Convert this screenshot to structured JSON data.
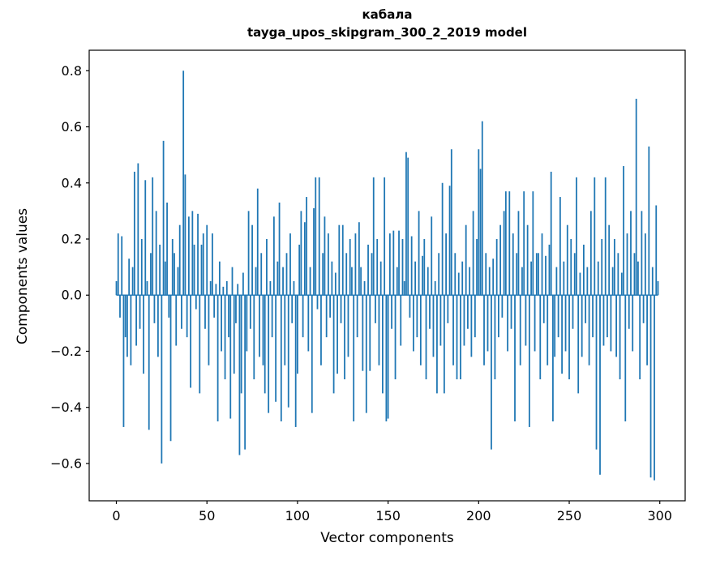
{
  "figure": {
    "title_line1": "кабала",
    "title_line2": "tayga_upos_skipgram_300_2_2019 model",
    "xlabel": "Vector components",
    "ylabel": "Components values"
  },
  "chart_data": {
    "type": "bar",
    "title": "кабала\ntayga_upos_skipgram_300_2_2019 model",
    "xlabel": "Vector components",
    "ylabel": "Components values",
    "bar_color": "#1f77b4",
    "grid": false,
    "legend": null,
    "xlim": [
      -15,
      314
    ],
    "ylim": [
      -0.733,
      0.873
    ],
    "x_ticks": [
      0,
      50,
      100,
      150,
      200,
      250,
      300
    ],
    "y_ticks": [
      -0.6,
      -0.4,
      -0.2,
      0.0,
      0.2,
      0.4,
      0.6,
      0.8
    ],
    "y_tick_labels": [
      "−0.6",
      "−0.4",
      "−0.2",
      "0.0",
      "0.2",
      "0.4",
      "0.6",
      "0.8"
    ],
    "x_description": "component index 0..299",
    "values": [
      0.05,
      0.22,
      -0.08,
      0.21,
      -0.47,
      -0.15,
      -0.22,
      0.13,
      -0.25,
      0.1,
      0.44,
      -0.18,
      0.47,
      -0.12,
      0.2,
      -0.28,
      0.41,
      0.05,
      -0.48,
      0.15,
      0.42,
      -0.1,
      0.3,
      -0.22,
      0.18,
      -0.6,
      0.55,
      0.12,
      0.33,
      -0.08,
      -0.52,
      0.2,
      0.15,
      -0.18,
      0.1,
      0.25,
      -0.12,
      0.8,
      0.43,
      -0.15,
      0.28,
      -0.33,
      0.3,
      0.18,
      -0.05,
      0.29,
      -0.35,
      0.18,
      0.22,
      -0.12,
      0.25,
      -0.25,
      0.05,
      0.22,
      -0.08,
      0.04,
      -0.45,
      0.12,
      -0.2,
      0.03,
      -0.3,
      0.05,
      -0.15,
      -0.44,
      0.1,
      -0.28,
      -0.1,
      0.04,
      -0.57,
      -0.35,
      0.08,
      -0.55,
      -0.2,
      0.3,
      -0.12,
      0.25,
      -0.3,
      0.1,
      0.38,
      -0.22,
      0.15,
      -0.25,
      -0.35,
      0.2,
      -0.42,
      0.05,
      -0.15,
      0.28,
      -0.38,
      0.12,
      0.33,
      -0.45,
      0.1,
      -0.25,
      0.15,
      -0.4,
      0.22,
      -0.1,
      0.05,
      -0.47,
      -0.28,
      0.18,
      0.3,
      -0.15,
      0.26,
      0.35,
      -0.2,
      0.1,
      -0.42,
      0.31,
      0.42,
      -0.05,
      0.42,
      -0.25,
      0.15,
      0.28,
      -0.15,
      0.22,
      -0.08,
      0.12,
      -0.35,
      0.08,
      -0.28,
      0.25,
      -0.1,
      0.25,
      -0.3,
      0.15,
      -0.22,
      0.2,
      0.1,
      -0.45,
      0.22,
      -0.15,
      0.26,
      0.1,
      -0.27,
      0.05,
      -0.42,
      0.18,
      -0.27,
      0.15,
      0.42,
      -0.1,
      0.2,
      -0.25,
      0.12,
      -0.35,
      0.42,
      -0.45,
      -0.44,
      0.22,
      -0.12,
      0.23,
      -0.3,
      0.1,
      0.23,
      -0.18,
      0.2,
      0.05,
      0.51,
      0.49,
      -0.08,
      0.21,
      -0.2,
      0.12,
      -0.15,
      0.3,
      -0.25,
      0.14,
      0.2,
      -0.3,
      0.1,
      -0.12,
      0.28,
      -0.22,
      0.05,
      -0.35,
      0.15,
      -0.18,
      0.4,
      -0.35,
      0.22,
      -0.1,
      0.39,
      0.52,
      -0.25,
      0.15,
      -0.3,
      0.08,
      -0.3,
      0.12,
      -0.18,
      0.25,
      -0.12,
      0.1,
      -0.22,
      0.3,
      -0.15,
      0.2,
      0.52,
      0.45,
      0.62,
      -0.25,
      0.15,
      -0.2,
      0.1,
      -0.55,
      0.13,
      -0.3,
      0.2,
      -0.15,
      0.25,
      -0.08,
      0.3,
      0.37,
      -0.2,
      0.37,
      -0.12,
      0.22,
      -0.45,
      0.15,
      0.3,
      -0.25,
      0.1,
      0.37,
      -0.18,
      0.25,
      -0.47,
      0.12,
      0.37,
      -0.2,
      0.15,
      0.15,
      -0.3,
      0.22,
      -0.1,
      0.14,
      -0.25,
      0.18,
      0.44,
      -0.45,
      -0.22,
      0.1,
      -0.15,
      0.35,
      -0.28,
      0.12,
      -0.2,
      0.25,
      -0.3,
      0.2,
      -0.12,
      0.15,
      0.42,
      -0.35,
      0.08,
      -0.22,
      0.18,
      -0.1,
      0.1,
      -0.25,
      0.3,
      -0.15,
      0.42,
      -0.55,
      0.12,
      -0.64,
      0.2,
      -0.18,
      0.42,
      -0.15,
      0.25,
      -0.2,
      0.1,
      0.2,
      -0.22,
      0.15,
      -0.3,
      0.08,
      0.46,
      -0.45,
      0.22,
      -0.12,
      0.3,
      -0.2,
      0.15,
      0.7,
      0.12,
      -0.3,
      0.3,
      -0.1,
      0.22,
      -0.25,
      0.53,
      -0.65,
      0.1,
      -0.66,
      0.32,
      0.05
    ]
  }
}
